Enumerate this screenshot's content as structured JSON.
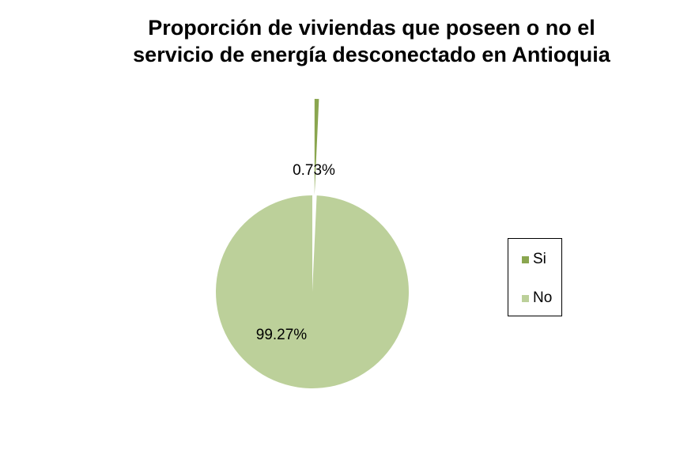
{
  "chart_data": {
    "type": "pie",
    "title_lines": [
      "Proporción de viviendas que poseen o no el",
      "servicio de energía desconectado en Antioquia"
    ],
    "slices": [
      {
        "name": "Si",
        "value": 0.73,
        "label": "0.73%",
        "color": "#8aa64f",
        "exploded": true
      },
      {
        "name": "No",
        "value": 99.27,
        "label": "99.27%",
        "color": "#bcd09a",
        "exploded": false
      }
    ],
    "legend_position": "right"
  }
}
